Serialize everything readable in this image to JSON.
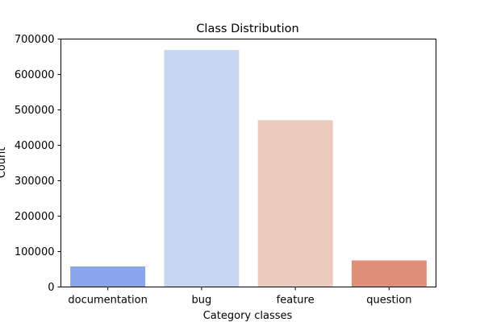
{
  "chart_data": {
    "type": "bar",
    "title": "Class Distribution",
    "xlabel": "Category classes",
    "ylabel": "Count",
    "categories": [
      "documentation",
      "bug",
      "feature",
      "question"
    ],
    "values": [
      58000,
      669000,
      471000,
      75000
    ],
    "colors": [
      "#8aa6ec",
      "#c6d5f0",
      "#eacbbd",
      "#df8f79"
    ],
    "ylim": [
      0,
      700000
    ],
    "yticks": [
      0,
      100000,
      200000,
      300000,
      400000,
      500000,
      600000,
      700000
    ],
    "ytick_labels": [
      "0",
      "100000",
      "200000",
      "300000",
      "400000",
      "500000",
      "600000",
      "700000"
    ],
    "grid": false,
    "legend": "none"
  }
}
